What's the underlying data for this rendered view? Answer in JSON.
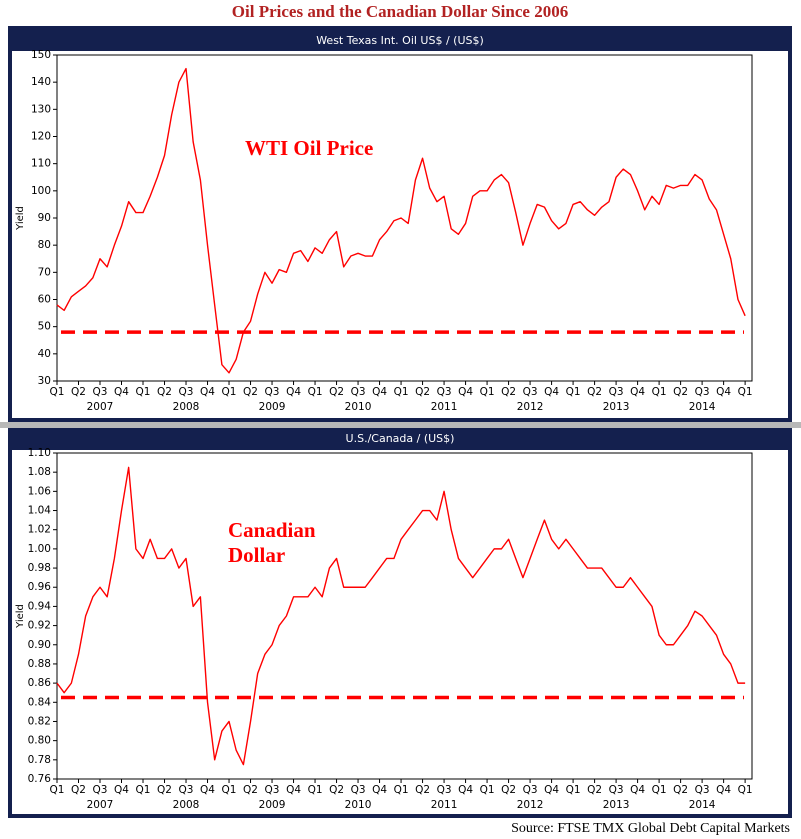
{
  "title": "Oil Prices and the Canadian Dollar Since 2006",
  "source": "Source: FTSE TMX Global Debt Capital Markets",
  "chart_data": [
    {
      "type": "line",
      "title": "West Texas Int. Oil US$ / (US$)",
      "ylabel": "Yield",
      "color": "#ff0000",
      "annotation": [
        "WTI Oil Price"
      ],
      "reference_line": 48,
      "x": [
        2007,
        2007.083,
        2007.167,
        2007.25,
        2007.333,
        2007.417,
        2007.5,
        2007.583,
        2007.667,
        2007.75,
        2007.833,
        2007.917,
        2008,
        2008.083,
        2008.167,
        2008.25,
        2008.333,
        2008.417,
        2008.5,
        2008.583,
        2008.667,
        2008.75,
        2008.833,
        2008.917,
        2009,
        2009.083,
        2009.167,
        2009.25,
        2009.333,
        2009.417,
        2009.5,
        2009.583,
        2009.667,
        2009.75,
        2009.833,
        2009.917,
        2010,
        2010.083,
        2010.167,
        2010.25,
        2010.333,
        2010.417,
        2010.5,
        2010.583,
        2010.667,
        2010.75,
        2010.833,
        2010.917,
        2011,
        2011.083,
        2011.167,
        2011.25,
        2011.333,
        2011.417,
        2011.5,
        2011.583,
        2011.667,
        2011.75,
        2011.833,
        2011.917,
        2012,
        2012.083,
        2012.167,
        2012.25,
        2012.333,
        2012.417,
        2012.5,
        2012.583,
        2012.667,
        2012.75,
        2012.833,
        2012.917,
        2013,
        2013.083,
        2013.167,
        2013.25,
        2013.333,
        2013.417,
        2013.5,
        2013.583,
        2013.667,
        2013.75,
        2013.833,
        2013.917,
        2014,
        2014.083,
        2014.167,
        2014.25,
        2014.333,
        2014.417,
        2014.5,
        2014.583,
        2014.667,
        2014.75,
        2014.833,
        2014.917,
        2015
      ],
      "values": [
        58,
        56,
        61,
        63,
        65,
        68,
        75,
        72,
        80,
        87,
        96,
        92,
        92,
        98,
        105,
        113,
        128,
        140,
        145,
        118,
        104,
        80,
        58,
        36,
        33,
        38,
        48,
        52,
        62,
        70,
        66,
        71,
        70,
        77,
        78,
        74,
        79,
        77,
        82,
        85,
        72,
        76,
        77,
        76,
        76,
        82,
        85,
        89,
        90,
        88,
        104,
        112,
        101,
        96,
        98,
        86,
        84,
        88,
        98,
        100,
        100,
        104,
        106,
        103,
        92,
        80,
        88,
        95,
        94,
        89,
        86,
        88,
        95,
        96,
        93,
        91,
        94,
        96,
        105,
        108,
        106,
        100,
        93,
        98,
        95,
        102,
        101,
        102,
        102,
        106,
        104,
        97,
        93,
        84,
        75,
        60,
        54
      ],
      "xlim": [
        2007,
        2015.08
      ],
      "ylim": [
        30,
        150
      ],
      "yticks": [
        30,
        40,
        50,
        60,
        70,
        80,
        90,
        100,
        110,
        120,
        130,
        140,
        150
      ],
      "xticks": [
        {
          "value": 2007,
          "label": "Q1"
        },
        {
          "value": 2007.25,
          "label": "Q2"
        },
        {
          "value": 2007.5,
          "label": "Q3"
        },
        {
          "value": 2007.75,
          "label": "Q4"
        },
        {
          "value": 2008,
          "label": "Q1"
        },
        {
          "value": 2008.25,
          "label": "Q2"
        },
        {
          "value": 2008.5,
          "label": "Q3"
        },
        {
          "value": 2008.75,
          "label": "Q4"
        },
        {
          "value": 2009,
          "label": "Q1"
        },
        {
          "value": 2009.25,
          "label": "Q2"
        },
        {
          "value": 2009.5,
          "label": "Q3"
        },
        {
          "value": 2009.75,
          "label": "Q4"
        },
        {
          "value": 2010,
          "label": "Q1"
        },
        {
          "value": 2010.25,
          "label": "Q2"
        },
        {
          "value": 2010.5,
          "label": "Q3"
        },
        {
          "value": 2010.75,
          "label": "Q4"
        },
        {
          "value": 2011,
          "label": "Q1"
        },
        {
          "value": 2011.25,
          "label": "Q2"
        },
        {
          "value": 2011.5,
          "label": "Q3"
        },
        {
          "value": 2011.75,
          "label": "Q4"
        },
        {
          "value": 2012,
          "label": "Q1"
        },
        {
          "value": 2012.25,
          "label": "Q2"
        },
        {
          "value": 2012.5,
          "label": "Q3"
        },
        {
          "value": 2012.75,
          "label": "Q4"
        },
        {
          "value": 2013,
          "label": "Q1"
        },
        {
          "value": 2013.25,
          "label": "Q2"
        },
        {
          "value": 2013.5,
          "label": "Q3"
        },
        {
          "value": 2013.75,
          "label": "Q4"
        },
        {
          "value": 2014,
          "label": "Q1"
        },
        {
          "value": 2014.25,
          "label": "Q2"
        },
        {
          "value": 2014.5,
          "label": "Q3"
        },
        {
          "value": 2014.75,
          "label": "Q4"
        },
        {
          "value": 2015,
          "label": "Q1"
        }
      ],
      "year_labels": [
        {
          "value": 2007.5,
          "label": "2007"
        },
        {
          "value": 2008.5,
          "label": "2008"
        },
        {
          "value": 2009.5,
          "label": "2009"
        },
        {
          "value": 2010.5,
          "label": "2010"
        },
        {
          "value": 2011.5,
          "label": "2011"
        },
        {
          "value": 2012.5,
          "label": "2012"
        },
        {
          "value": 2013.5,
          "label": "2013"
        },
        {
          "value": 2014.5,
          "label": "2014"
        }
      ]
    },
    {
      "type": "line",
      "title": "U.S./Canada / (US$)",
      "ylabel": "Yield",
      "color": "#ff0000",
      "annotation": [
        "Canadian",
        "Dollar"
      ],
      "reference_line": 0.845,
      "x": [
        2007,
        2007.083,
        2007.167,
        2007.25,
        2007.333,
        2007.417,
        2007.5,
        2007.583,
        2007.667,
        2007.75,
        2007.833,
        2007.917,
        2008,
        2008.083,
        2008.167,
        2008.25,
        2008.333,
        2008.417,
        2008.5,
        2008.583,
        2008.667,
        2008.75,
        2008.833,
        2008.917,
        2009,
        2009.083,
        2009.167,
        2009.25,
        2009.333,
        2009.417,
        2009.5,
        2009.583,
        2009.667,
        2009.75,
        2009.833,
        2009.917,
        2010,
        2010.083,
        2010.167,
        2010.25,
        2010.333,
        2010.417,
        2010.5,
        2010.583,
        2010.667,
        2010.75,
        2010.833,
        2010.917,
        2011,
        2011.083,
        2011.167,
        2011.25,
        2011.333,
        2011.417,
        2011.5,
        2011.583,
        2011.667,
        2011.75,
        2011.833,
        2011.917,
        2012,
        2012.083,
        2012.167,
        2012.25,
        2012.333,
        2012.417,
        2012.5,
        2012.583,
        2012.667,
        2012.75,
        2012.833,
        2012.917,
        2013,
        2013.083,
        2013.167,
        2013.25,
        2013.333,
        2013.417,
        2013.5,
        2013.583,
        2013.667,
        2013.75,
        2013.833,
        2013.917,
        2014,
        2014.083,
        2014.167,
        2014.25,
        2014.333,
        2014.417,
        2014.5,
        2014.583,
        2014.667,
        2014.75,
        2014.833,
        2014.917,
        2015
      ],
      "values": [
        0.86,
        0.85,
        0.86,
        0.89,
        0.93,
        0.95,
        0.96,
        0.95,
        0.99,
        1.04,
        1.085,
        1.0,
        0.99,
        1.01,
        0.99,
        0.99,
        1.0,
        0.98,
        0.99,
        0.94,
        0.95,
        0.84,
        0.78,
        0.81,
        0.82,
        0.79,
        0.775,
        0.82,
        0.87,
        0.89,
        0.9,
        0.92,
        0.93,
        0.95,
        0.95,
        0.95,
        0.96,
        0.95,
        0.98,
        0.99,
        0.96,
        0.96,
        0.96,
        0.96,
        0.97,
        0.98,
        0.99,
        0.99,
        1.01,
        1.02,
        1.03,
        1.04,
        1.04,
        1.03,
        1.06,
        1.02,
        0.99,
        0.98,
        0.97,
        0.98,
        0.99,
        1.0,
        1.0,
        1.01,
        0.99,
        0.97,
        0.99,
        1.01,
        1.03,
        1.01,
        1.0,
        1.01,
        1.0,
        0.99,
        0.98,
        0.98,
        0.98,
        0.97,
        0.96,
        0.96,
        0.97,
        0.96,
        0.95,
        0.94,
        0.91,
        0.9,
        0.9,
        0.91,
        0.92,
        0.935,
        0.93,
        0.92,
        0.91,
        0.89,
        0.88,
        0.86,
        0.86
      ],
      "xlim": [
        2007,
        2015.08
      ],
      "ylim": [
        0.76,
        1.1
      ],
      "yticks": [
        0.76,
        0.78,
        {
          "value": 0.8,
          "label": "0.80"
        },
        0.82,
        0.84,
        0.86,
        0.88,
        {
          "value": 0.9,
          "label": "0.90"
        },
        0.92,
        0.94,
        0.96,
        0.98,
        {
          "value": 1,
          "label": "1.00"
        },
        1.02,
        1.04,
        1.06,
        1.08,
        {
          "value": 1.1,
          "label": "1.10"
        }
      ],
      "xticks": [
        {
          "value": 2007,
          "label": "Q1"
        },
        {
          "value": 2007.25,
          "label": "Q2"
        },
        {
          "value": 2007.5,
          "label": "Q3"
        },
        {
          "value": 2007.75,
          "label": "Q4"
        },
        {
          "value": 2008,
          "label": "Q1"
        },
        {
          "value": 2008.25,
          "label": "Q2"
        },
        {
          "value": 2008.5,
          "label": "Q3"
        },
        {
          "value": 2008.75,
          "label": "Q4"
        },
        {
          "value": 2009,
          "label": "Q1"
        },
        {
          "value": 2009.25,
          "label": "Q2"
        },
        {
          "value": 2009.5,
          "label": "Q3"
        },
        {
          "value": 2009.75,
          "label": "Q4"
        },
        {
          "value": 2010,
          "label": "Q1"
        },
        {
          "value": 2010.25,
          "label": "Q2"
        },
        {
          "value": 2010.5,
          "label": "Q3"
        },
        {
          "value": 2010.75,
          "label": "Q4"
        },
        {
          "value": 2011,
          "label": "Q1"
        },
        {
          "value": 2011.25,
          "label": "Q2"
        },
        {
          "value": 2011.5,
          "label": "Q3"
        },
        {
          "value": 2011.75,
          "label": "Q4"
        },
        {
          "value": 2012,
          "label": "Q1"
        },
        {
          "value": 2012.25,
          "label": "Q2"
        },
        {
          "value": 2012.5,
          "label": "Q3"
        },
        {
          "value": 2012.75,
          "label": "Q4"
        },
        {
          "value": 2013,
          "label": "Q1"
        },
        {
          "value": 2013.25,
          "label": "Q2"
        },
        {
          "value": 2013.5,
          "label": "Q3"
        },
        {
          "value": 2013.75,
          "label": "Q4"
        },
        {
          "value": 2014,
          "label": "Q1"
        },
        {
          "value": 2014.25,
          "label": "Q2"
        },
        {
          "value": 2014.5,
          "label": "Q3"
        },
        {
          "value": 2014.75,
          "label": "Q4"
        },
        {
          "value": 2015,
          "label": "Q1"
        }
      ],
      "year_labels": [
        {
          "value": 2007.5,
          "label": "2007"
        },
        {
          "value": 2008.5,
          "label": "2008"
        },
        {
          "value": 2009.5,
          "label": "2009"
        },
        {
          "value": 2010.5,
          "label": "2010"
        },
        {
          "value": 2011.5,
          "label": "2011"
        },
        {
          "value": 2012.5,
          "label": "2012"
        },
        {
          "value": 2013.5,
          "label": "2013"
        },
        {
          "value": 2014.5,
          "label": "2014"
        }
      ]
    }
  ]
}
